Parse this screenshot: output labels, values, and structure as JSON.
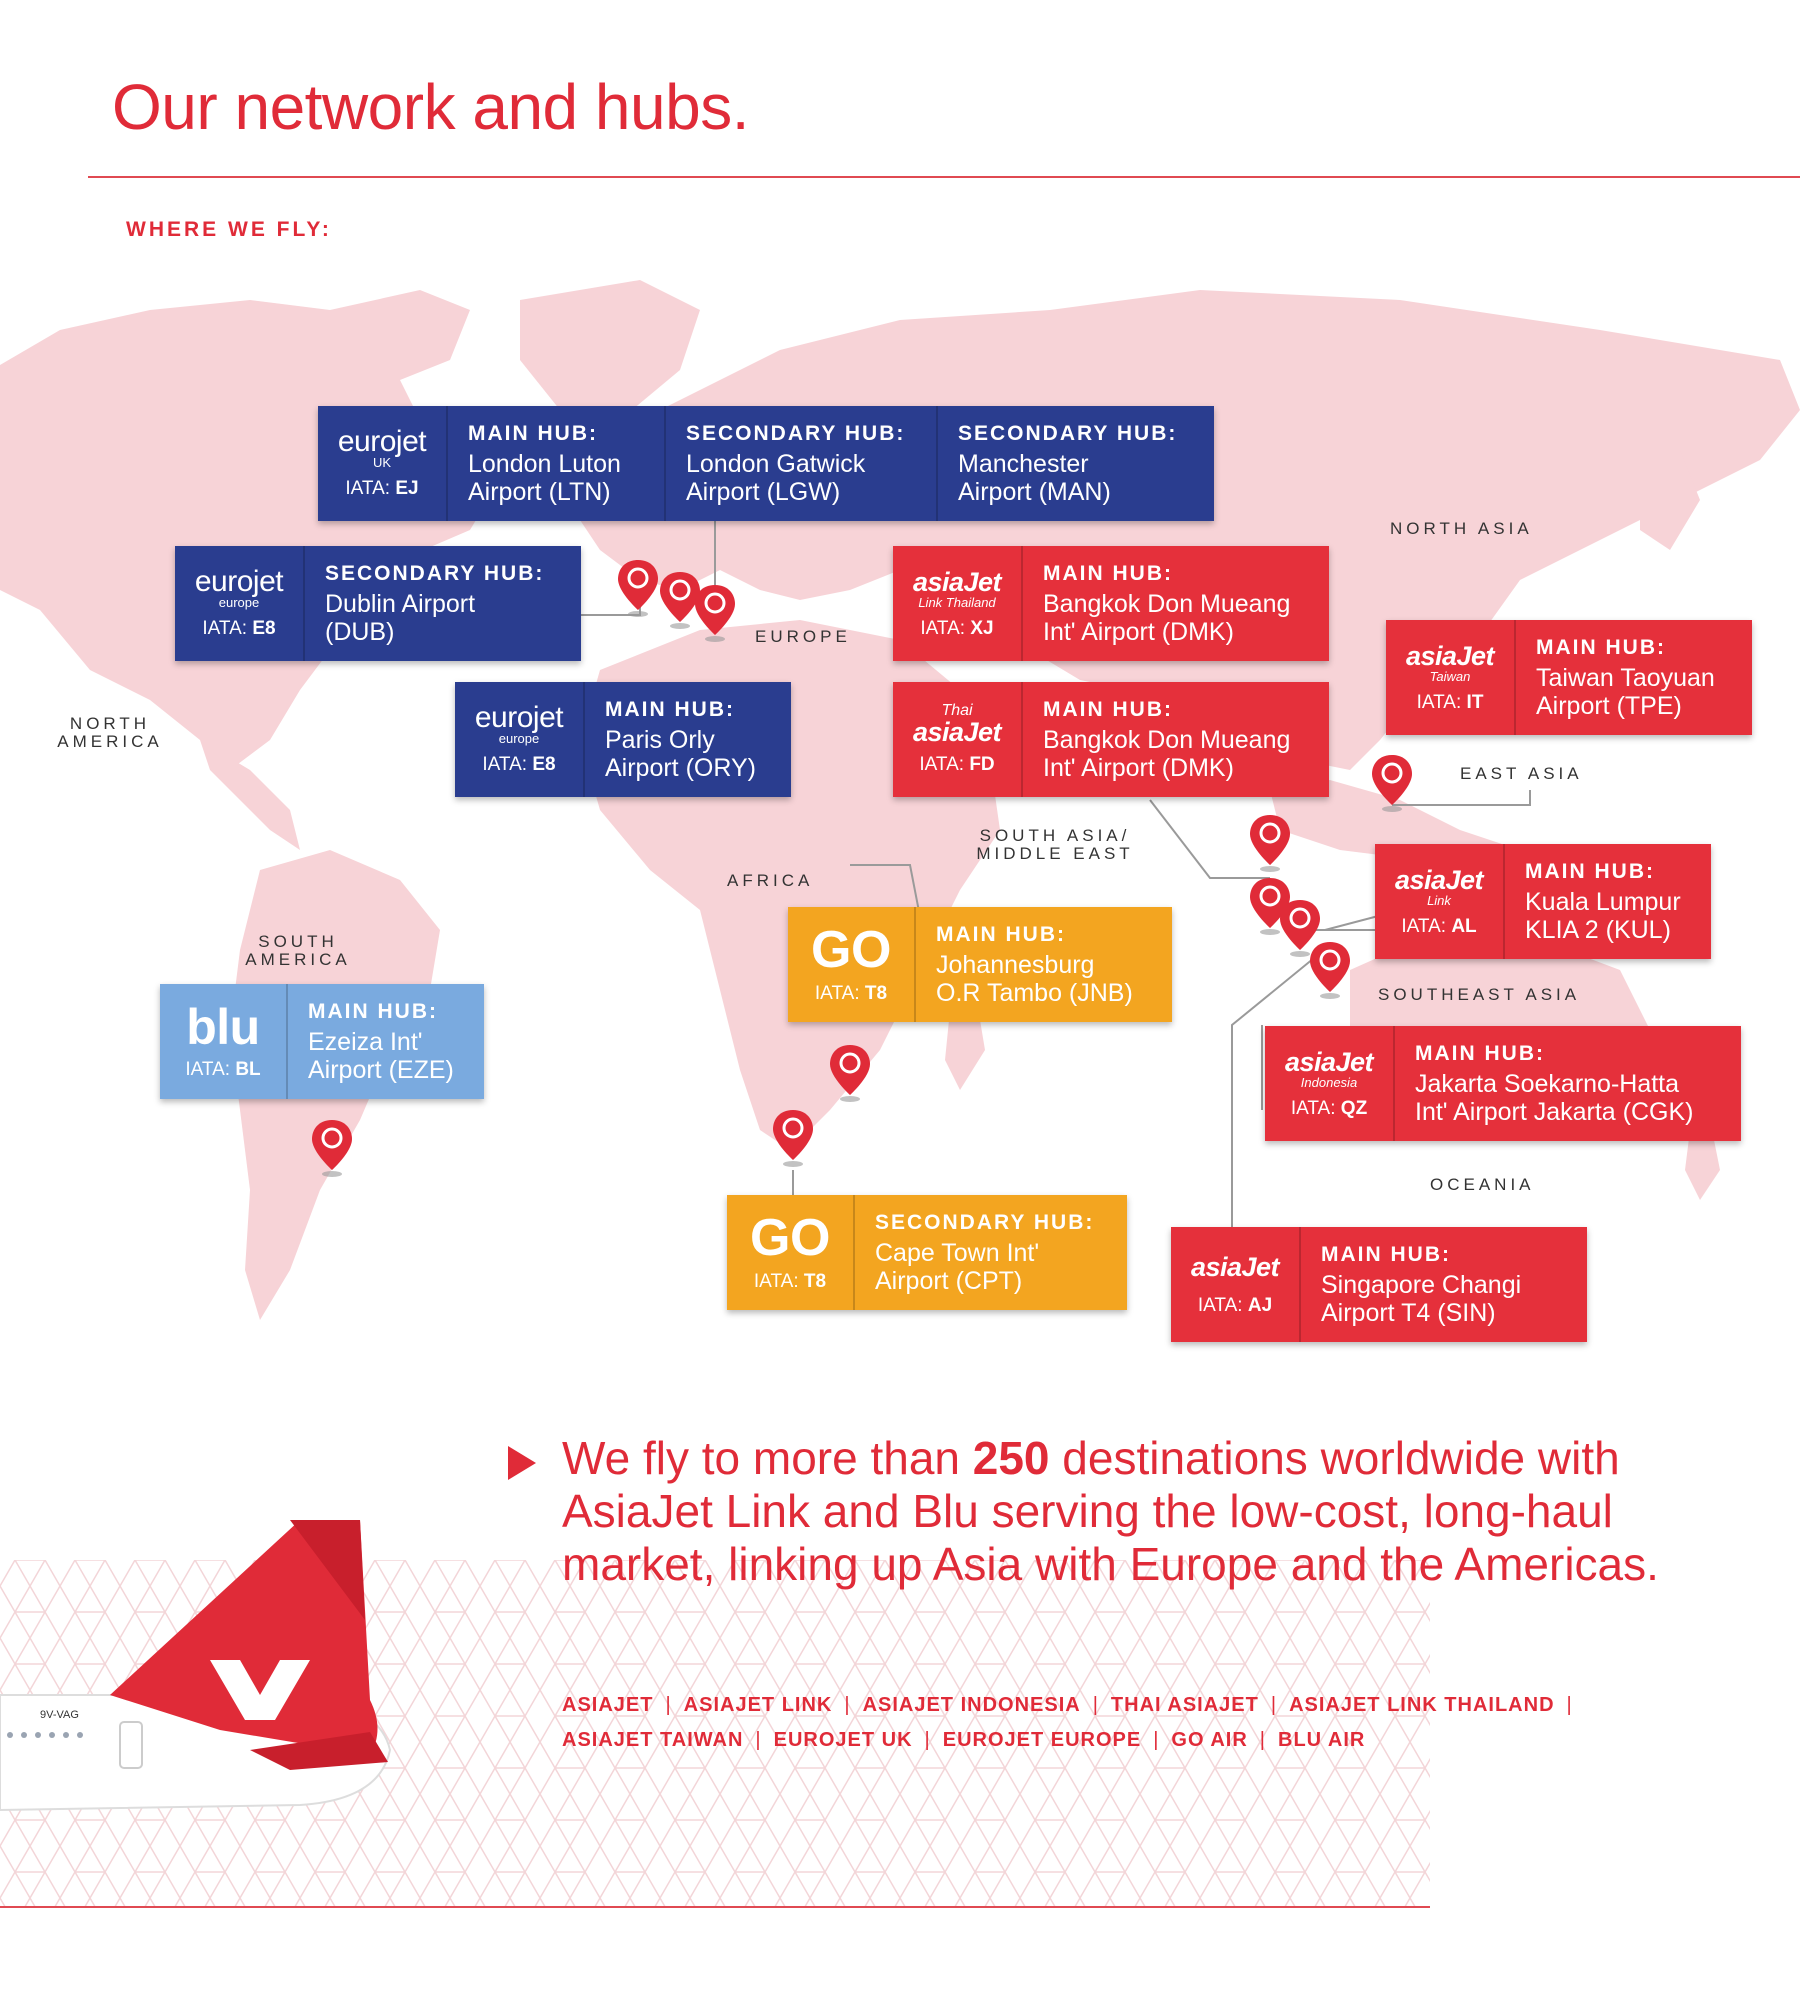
{
  "title": "Our network and hubs.",
  "where_label": "WHERE WE FLY:",
  "regions": {
    "north_asia": "NORTH ASIA",
    "europe": "EUROPE",
    "north_america_1": "NORTH",
    "north_america_2": "AMERICA",
    "east_asia": "EAST ASIA",
    "south_asia_1": "SOUTH ASIA/",
    "south_asia_2": "MIDDLE EAST",
    "africa": "AFRICA",
    "south_america_1": "SOUTH",
    "south_america_2": "AMERICA",
    "southeast_asia": "SOUTHEAST ASIA",
    "oceania": "OCEANIA"
  },
  "iata_label": "IATA:",
  "hubs": {
    "eurojet_uk": {
      "brand": "eurojet",
      "sub": "UK",
      "iata": "EJ",
      "cells": [
        {
          "key": "MAIN HUB:",
          "l1": "London Luton",
          "l2": "Airport (LTN)"
        },
        {
          "key": "SECONDARY HUB:",
          "l1": "London Gatwick",
          "l2": "Airport (LGW)"
        },
        {
          "key": "SECONDARY HUB:",
          "l1": "Manchester",
          "l2": "Airport (MAN)"
        }
      ]
    },
    "eurojet_dub": {
      "brand": "eurojet",
      "sub": "europe",
      "iata": "E8",
      "cells": [
        {
          "key": "SECONDARY HUB:",
          "l1": "Dublin Airport",
          "l2": "(DUB)"
        }
      ]
    },
    "eurojet_ory": {
      "brand": "eurojet",
      "sub": "europe",
      "iata": "E8",
      "cells": [
        {
          "key": "MAIN HUB:",
          "l1": "Paris Orly",
          "l2": "Airport (ORY)"
        }
      ]
    },
    "asiajet_link_thailand": {
      "brand": "asiaJet",
      "sub": "Link Thailand",
      "iata": "XJ",
      "cells": [
        {
          "key": "MAIN HUB:",
          "l1": "Bangkok Don Mueang",
          "l2": "Int' Airport (DMK)"
        }
      ]
    },
    "thai_asiajet": {
      "brand": "asiaJet",
      "sub": "Thai",
      "iata": "FD",
      "cells": [
        {
          "key": "MAIN HUB:",
          "l1": "Bangkok Don Mueang",
          "l2": "Int' Airport (DMK)"
        }
      ]
    },
    "asiajet_taiwan": {
      "brand": "asiaJet",
      "sub": "Taiwan",
      "iata": "IT",
      "cells": [
        {
          "key": "MAIN HUB:",
          "l1": "Taiwan Taoyuan",
          "l2": "Airport (TPE)"
        }
      ]
    },
    "asiajet_link": {
      "brand": "asiaJet",
      "sub": "Link",
      "iata": "AL",
      "cells": [
        {
          "key": "MAIN HUB:",
          "l1": "Kuala Lumpur",
          "l2": "KLIA 2 (KUL)"
        }
      ]
    },
    "asiajet_indonesia": {
      "brand": "asiaJet",
      "sub": "Indonesia",
      "iata": "QZ",
      "cells": [
        {
          "key": "MAIN HUB:",
          "l1": "Jakarta Soekarno-Hatta",
          "l2": "Int' Airport Jakarta (CGK)"
        }
      ]
    },
    "asiajet": {
      "brand": "asiaJet",
      "sub": "",
      "iata": "AJ",
      "cells": [
        {
          "key": "MAIN HUB:",
          "l1": "Singapore Changi",
          "l2": "Airport T4 (SIN)"
        }
      ]
    },
    "go_jnb": {
      "brand": "GO",
      "iata": "T8",
      "cells": [
        {
          "key": "MAIN HUB:",
          "l1": "Johannesburg",
          "l2": "O.R Tambo (JNB)"
        }
      ]
    },
    "go_cpt": {
      "brand": "GO",
      "iata": "T8",
      "cells": [
        {
          "key": "SECONDARY HUB:",
          "l1": "Cape Town Int'",
          "l2": "Airport (CPT)"
        }
      ]
    },
    "blu": {
      "brand": "blu",
      "iata": "BL",
      "cells": [
        {
          "key": "MAIN HUB:",
          "l1": "Ezeiza Int'",
          "l2": "Airport (EZE)"
        }
      ]
    }
  },
  "tagline": {
    "pre": "We fly to more than ",
    "bold": "250",
    "post": " destinations worldwide with AsiaJet Link and Blu serving the low-cost, long-haul market, linking up Asia with Europe and the Americas."
  },
  "brands_line1": [
    "ASIAJET",
    "ASIAJET LINK",
    "ASIAJET INDONESIA",
    "THAI ASIAJET",
    "ASIAJET LINK THAILAND"
  ],
  "brands_line2": [
    "ASIAJET TAIWAN",
    "EUROJET UK",
    "EUROJET EUROPE",
    "GO AIR",
    "BLU AIR"
  ],
  "brand_separator": "|",
  "aircraft_registration": "9V-VAG",
  "colors": {
    "accent": "#e02b38",
    "navy": "#2a3d8f",
    "red": "#e5303b",
    "orange": "#f3a520",
    "sky": "#7aaadf",
    "map": "#f7d3d7"
  }
}
